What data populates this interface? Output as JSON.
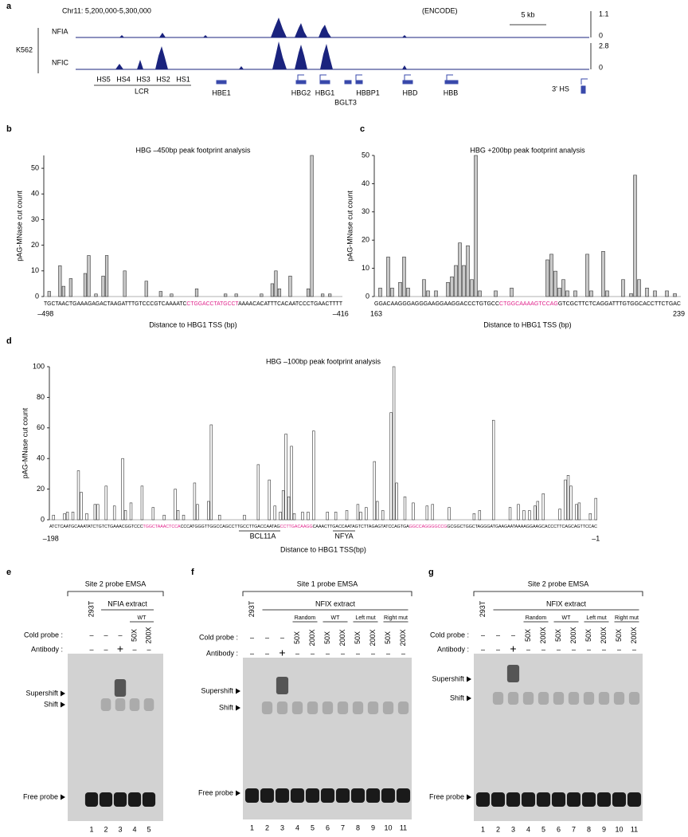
{
  "labels": [
    "a",
    "b",
    "c",
    "d",
    "e",
    "f",
    "g"
  ],
  "panel_a": {
    "coords": "Chr11: 5,200,000-5,300,000",
    "source": "(ENCODE)",
    "scale": "5 kb",
    "cell": "K562",
    "tracks": [
      {
        "name": "NFIA",
        "max": 1.1,
        "min": 0
      },
      {
        "name": "NFIC",
        "max": 2.8,
        "min": 0
      }
    ],
    "hs": [
      "HS5",
      "HS4",
      "HS3",
      "HS2",
      "HS1"
    ],
    "lcr": "LCR",
    "genes": [
      "HBE1",
      "HBG2",
      "HBG1",
      "BGLT3",
      "HBBP1",
      "HBD",
      "HBB",
      "3' HS"
    ]
  },
  "chart_data": [
    {
      "type": "bar",
      "title": "HBG –450bp peak footprint analysis",
      "ylabel": "pAG-MNase cut count",
      "xlabel": "Distance to HBG1 TSS (bp)",
      "sequence": [
        "TGCTAACTGAAAGAGACTAAGATTTGTCCCGTCAAAATC",
        "CTGGACCTATGCCT",
        "AAAACACATTTCACAATCCCTGAACTTTT"
      ],
      "sequence_colors": [
        "#000000",
        "#e0218a",
        "#000000"
      ],
      "color": "#c8c8c8",
      "xlim": [
        -498,
        -416
      ],
      "xticks": [
        {
          "value": -498,
          "label": "–498"
        },
        {
          "value": -416,
          "label": "–416"
        }
      ],
      "ylim": [
        0,
        55
      ],
      "yticks": [
        0,
        10,
        20,
        30,
        40,
        50
      ],
      "x": [
        -497,
        -494,
        -493,
        -491,
        -487,
        -486,
        -484,
        -482,
        -481,
        -476,
        -470,
        -466,
        -463,
        -456,
        -448,
        -445,
        -438,
        -435,
        -434,
        -433,
        -430,
        -425,
        -424,
        -421,
        -419
      ],
      "values": [
        2,
        12,
        4,
        7,
        9,
        16,
        1,
        8,
        16,
        10,
        6,
        2,
        1,
        3,
        1,
        1,
        1,
        5,
        10,
        3,
        8,
        3,
        55,
        1,
        1
      ]
    },
    {
      "type": "bar",
      "title": "HBG +200bp peak footprint analysis",
      "ylabel": "pAG-MNase cut count",
      "xlabel": "Distance to HBG1 TSS (bp)",
      "sequence": [
        "GGACAAGGGAGGGAAGGAAGGACCCTGTGCC",
        "CTGGCAAAAGTCCAG",
        "GTCGCTTCTCAGGATTTGTGGCACCTTCTGAC"
      ],
      "sequence_colors": [
        "#000000",
        "#e0218a",
        "#000000"
      ],
      "color": "#c8c8c8",
      "xlim": [
        163,
        239
      ],
      "xticks": [
        163,
        239
      ],
      "ylim": [
        0,
        50
      ],
      "yticks": [
        0,
        10,
        20,
        30,
        40,
        50
      ],
      "x": [
        164,
        166,
        167,
        169,
        170,
        171,
        175,
        176,
        178,
        181,
        182,
        183,
        184,
        185,
        186,
        187,
        188,
        189,
        193,
        197,
        206,
        207,
        208,
        209,
        210,
        211,
        213,
        216,
        217,
        220,
        221,
        225,
        227,
        228,
        229,
        231,
        233,
        236,
        238
      ],
      "values": [
        3,
        14,
        3,
        5,
        14,
        3,
        6,
        2,
        2,
        5,
        7,
        11,
        19,
        11,
        18,
        6,
        50,
        2,
        2,
        3,
        13,
        15,
        9,
        3,
        6,
        2,
        2,
        15,
        2,
        16,
        2,
        6,
        1,
        43,
        6,
        3,
        2,
        2,
        1
      ]
    },
    {
      "type": "bar",
      "title": "HBG –100bp peak footprint analysis",
      "ylabel": "pAG-MNase cut count",
      "xlabel": "Distance to HBG1 TSS(bp)",
      "sequence": [
        "ATCTCAATGCAAATATCTGTCTGAAACGGTCCC",
        "TGGCTAAACTCCA",
        "CCCATGGGTTGGCCAGCCTTGCCTTGACCAATAG",
        "CCTTGACAAGG",
        "CAAACTTGACCAATAGTCTTAGAGTATCCAGTGA",
        "GGCCAGGGGCCG",
        "GCGGCTGGCTAGGGATGAAGAATAAAAGGAAGCACCCTTCAGCAGTTCCAC"
      ],
      "sequence_colors": [
        "#000000",
        "#e0218a",
        "#000000",
        "#e0218a",
        "#000000",
        "#e0218a",
        "#000000"
      ],
      "color": "#ffffff",
      "annotations": [
        "BCL11A",
        "NFYA"
      ],
      "xlim": [
        -198,
        -1
      ],
      "xticks": [
        {
          "value": -198,
          "label": "–198"
        },
        {
          "value": -1,
          "label": "–1"
        }
      ],
      "ylim": [
        0,
        100
      ],
      "yticks": [
        0,
        20,
        40,
        60,
        80,
        100
      ],
      "x": [
        -197,
        -193,
        -192,
        -190,
        -188,
        -187,
        -185,
        -182,
        -181,
        -178,
        -175,
        -172,
        -171,
        -169,
        -165,
        -161,
        -157,
        -153,
        -152,
        -150,
        -146,
        -145,
        -141,
        -140,
        -137,
        -128,
        -123,
        -119,
        -117,
        -115,
        -114,
        -113,
        -112,
        -111,
        -110,
        -107,
        -105,
        -103,
        -98,
        -95,
        -91,
        -87,
        -86,
        -84,
        -81,
        -80,
        -78,
        -75,
        -74,
        -73,
        -70,
        -67,
        -62,
        -60,
        -54,
        -45,
        -43,
        -38,
        -32,
        -29,
        -27,
        -25,
        -23,
        -22,
        -20,
        -14,
        -12,
        -11,
        -10,
        -8,
        -7,
        -3,
        -1
      ],
      "values": [
        3,
        4,
        5,
        5,
        32,
        18,
        4,
        10,
        10,
        22,
        9,
        40,
        6,
        11,
        22,
        8,
        3,
        20,
        6,
        3,
        24,
        10,
        12,
        62,
        3,
        3,
        36,
        26,
        9,
        5,
        19,
        56,
        15,
        48,
        4,
        5,
        5,
        58,
        5,
        5,
        6,
        10,
        5,
        8,
        38,
        12,
        6,
        70,
        100,
        24,
        15,
        11,
        9,
        10,
        8,
        4,
        6,
        65,
        8,
        10,
        6,
        6,
        9,
        12,
        17,
        7,
        26,
        29,
        22,
        10,
        11,
        4,
        14
      ]
    }
  ],
  "gels": [
    {
      "title": "Site 2 probe EMSA",
      "extract": "NFIA extract",
      "control": "293T",
      "groups": [
        "WT"
      ],
      "cold_label": "Cold probe :",
      "antibody_label": "Antibody :",
      "cold": [
        "–",
        "–",
        "–",
        "50X",
        "200X"
      ],
      "antibody": [
        "–",
        "–",
        "+",
        "–",
        "–"
      ],
      "markers": [
        "Supershift",
        "Shift",
        "Free probe"
      ],
      "lanes": [
        1,
        2,
        3,
        4,
        5
      ]
    },
    {
      "title": "Site 1 probe EMSA",
      "extract": "NFIX extract",
      "control": "293T",
      "groups": [
        "Random",
        "WT",
        "Left mut",
        "Right mut"
      ],
      "cold_label": "Cold probe :",
      "antibody_label": "Antibody :",
      "cold": [
        "–",
        "–",
        "–",
        "50X",
        "200X",
        "50X",
        "200X",
        "50X",
        "200X",
        "50X",
        "200X"
      ],
      "antibody": [
        "–",
        "–",
        "+",
        "–",
        "–",
        "–",
        "–",
        "–",
        "–",
        "–",
        "–"
      ],
      "markers": [
        "Supershift",
        "Shift",
        "Free probe"
      ],
      "lanes": [
        1,
        2,
        3,
        4,
        5,
        6,
        7,
        8,
        9,
        10,
        11
      ]
    },
    {
      "title": "Site 2 probe EMSA",
      "extract": "NFIX extract",
      "control": "293T",
      "groups": [
        "Random",
        "WT",
        "Left mut",
        "Right mut"
      ],
      "cold_label": "Cold probe :",
      "antibody_label": "Antibody :",
      "cold": [
        "–",
        "–",
        "–",
        "50X",
        "200X",
        "50X",
        "200X",
        "50X",
        "200X",
        "50X",
        "200X"
      ],
      "antibody": [
        "–",
        "–",
        "+",
        "–",
        "–",
        "–",
        "–",
        "–",
        "–",
        "–",
        "–"
      ],
      "markers": [
        "Supershift",
        "Shift",
        "Free probe"
      ],
      "lanes": [
        1,
        2,
        3,
        4,
        5,
        6,
        7,
        8,
        9,
        10,
        11
      ]
    }
  ]
}
